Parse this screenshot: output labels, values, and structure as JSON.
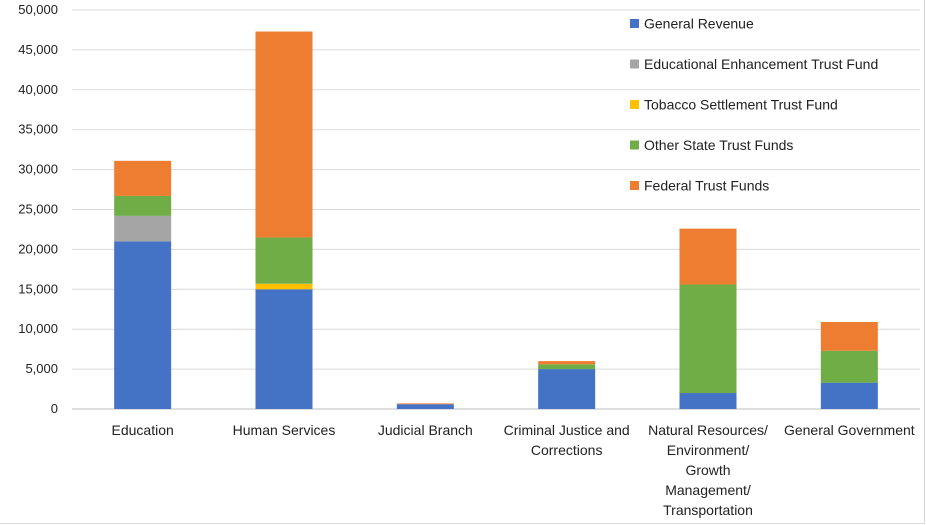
{
  "chart_data": {
    "type": "bar",
    "stacked": true,
    "categories": [
      [
        "Education"
      ],
      [
        "Human Services"
      ],
      [
        "Judicial Branch"
      ],
      [
        "Criminal Justice and",
        "Corrections"
      ],
      [
        "Natural Resources/",
        "Environment/",
        "Growth",
        "Management/",
        "Transportation"
      ],
      [
        "General Government"
      ]
    ],
    "series": [
      {
        "name": "General Revenue",
        "color": "#4472C4",
        "values": [
          21000,
          15000,
          600,
          5000,
          2000,
          3300
        ]
      },
      {
        "name": "Educational Enhancement Trust Fund",
        "color": "#A5A5A5",
        "values": [
          3200,
          0,
          0,
          0,
          0,
          0
        ]
      },
      {
        "name": "Tobacco Settlement Trust Fund",
        "color": "#FFC000",
        "values": [
          0,
          700,
          0,
          0,
          0,
          0
        ]
      },
      {
        "name": "Other State Trust Funds",
        "color": "#70AD47",
        "values": [
          2500,
          5800,
          0,
          600,
          13600,
          4000
        ]
      },
      {
        "name": "Federal Trust Funds",
        "color": "#ED7D31",
        "values": [
          4400,
          25800,
          100,
          400,
          7000,
          3600
        ]
      }
    ],
    "yticks": [
      "0",
      "5,000",
      "10,000",
      "15,000",
      "20,000",
      "25,000",
      "30,000",
      "35,000",
      "40,000",
      "45,000",
      "50,000"
    ],
    "ylim": [
      0,
      50000
    ],
    "grid": true,
    "legend_position": "top-right"
  }
}
